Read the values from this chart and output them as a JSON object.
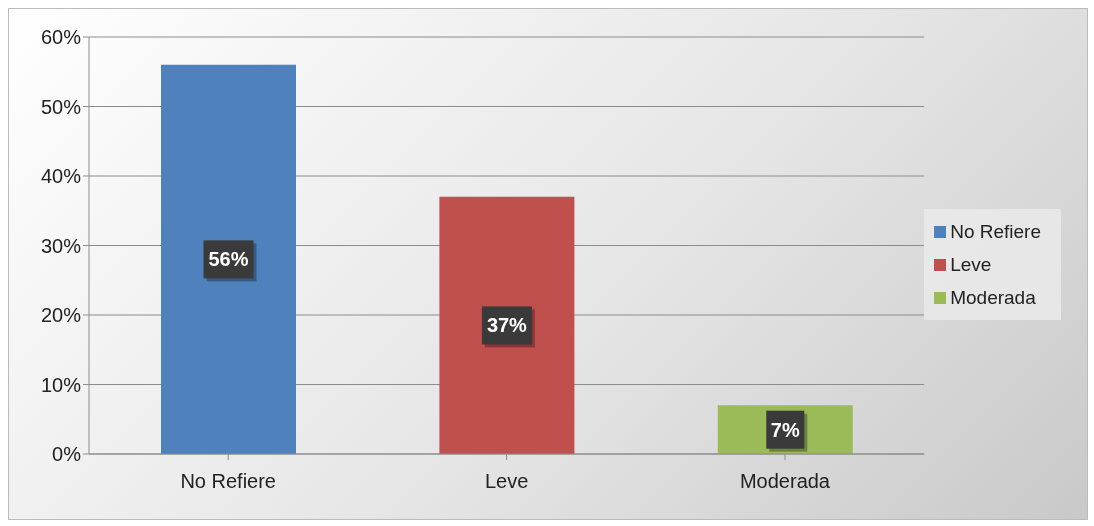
{
  "chart_data": {
    "type": "bar",
    "categories": [
      "No Refiere",
      "Leve",
      "Moderada"
    ],
    "series": [
      {
        "name": "No Refiere",
        "color": "#4f81bd",
        "values": [
          56,
          null,
          null
        ],
        "value_labels": [
          "56%",
          null,
          null
        ]
      },
      {
        "name": "Leve",
        "color": "#c0504d",
        "values": [
          null,
          37,
          null
        ],
        "value_labels": [
          null,
          "37%",
          null
        ]
      },
      {
        "name": "Moderada",
        "color": "#9bbb59",
        "values": [
          null,
          null,
          7
        ],
        "value_labels": [
          null,
          null,
          "7%"
        ]
      }
    ],
    "stacked": true,
    "ylim": [
      0,
      60
    ],
    "yticks": [
      {
        "value": 0,
        "label": "0%"
      },
      {
        "value": 10,
        "label": "10%"
      },
      {
        "value": 20,
        "label": "20%"
      },
      {
        "value": 30,
        "label": "30%"
      },
      {
        "value": 40,
        "label": "40%"
      },
      {
        "value": 50,
        "label": "50%"
      },
      {
        "value": 60,
        "label": "60%"
      }
    ],
    "grid": "y",
    "legend": "right"
  }
}
